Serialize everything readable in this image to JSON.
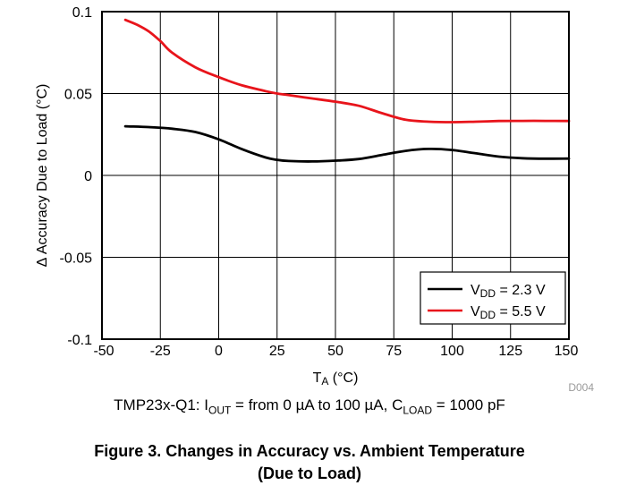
{
  "figure": {
    "title_line1": "Figure 3. Changes in Accuracy vs. Ambient Temperature",
    "title_line2": "(Due to Load)",
    "figure_id": "D004",
    "conditions": {
      "prefix": "TMP23x-Q1: I",
      "iout_sub": "OUT",
      "middle": " = from 0 µA to 100 µA, C",
      "cload_sub": "LOAD",
      "suffix": " = 1000 pF"
    }
  },
  "chart_data": {
    "type": "line",
    "xlabel": "TA (°C)",
    "xlabel_parts": {
      "main": "T",
      "sub": "A",
      "rest": " (°C)"
    },
    "ylabel": "Δ Accuracy Due to Load (°C)",
    "xlim": [
      -50,
      150
    ],
    "ylim": [
      -0.1,
      0.1
    ],
    "x_ticks": [
      "-50",
      "-25",
      "0",
      "25",
      "50",
      "75",
      "100",
      "125",
      "150"
    ],
    "y_ticks": [
      "0.1",
      "0.05",
      "0",
      "-0.05",
      "-0.1"
    ],
    "grid": true,
    "legend_position": "bottom-right",
    "series": [
      {
        "name": "VDD = 2.3 V",
        "name_parts": {
          "main": "V",
          "sub": "DD",
          "rest": " = 2.3 V"
        },
        "color": "#000000",
        "x": [
          -40,
          -30,
          -20,
          -10,
          0,
          10,
          20,
          25,
          30,
          40,
          50,
          60,
          70,
          80,
          90,
          100,
          110,
          120,
          130,
          140,
          150
        ],
        "y": [
          0.03,
          0.0295,
          0.0285,
          0.0265,
          0.022,
          0.016,
          0.011,
          0.0095,
          0.0088,
          0.0085,
          0.009,
          0.01,
          0.0125,
          0.015,
          0.0162,
          0.0155,
          0.0135,
          0.0115,
          0.0105,
          0.0102,
          0.0103
        ]
      },
      {
        "name": "VDD = 5.5 V",
        "name_parts": {
          "main": "V",
          "sub": "DD",
          "rest": " = 5.5 V"
        },
        "color": "#e8141b",
        "x": [
          -40,
          -35,
          -30,
          -25,
          -20,
          -10,
          0,
          10,
          20,
          25,
          30,
          40,
          50,
          60,
          70,
          80,
          90,
          100,
          110,
          120,
          130,
          140,
          150
        ],
        "y": [
          0.095,
          0.092,
          0.088,
          0.082,
          0.075,
          0.066,
          0.06,
          0.055,
          0.0515,
          0.05,
          0.049,
          0.047,
          0.045,
          0.0425,
          0.038,
          0.034,
          0.0328,
          0.0325,
          0.0328,
          0.0332,
          0.0333,
          0.0333,
          0.0332
        ]
      }
    ]
  }
}
